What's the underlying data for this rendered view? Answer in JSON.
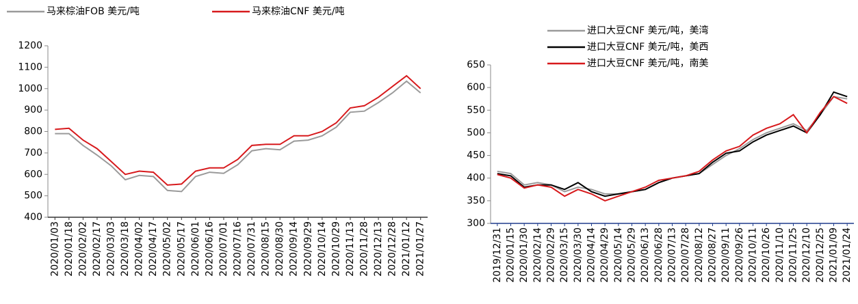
{
  "chart_data": [
    {
      "type": "line",
      "categories": [
        "2020/01/03",
        "2020/01/18",
        "2020/02/02",
        "2020/02/17",
        "2020/03/03",
        "2020/03/18",
        "2020/04/02",
        "2020/04/17",
        "2020/05/02",
        "2020/05/17",
        "2020/06/01",
        "2020/06/16",
        "2020/07/01",
        "2020/07/16",
        "2020/07/31",
        "2020/08/15",
        "2020/08/30",
        "2020/09/14",
        "2020/09/29",
        "2020/10/14",
        "2020/10/29",
        "2020/11/13",
        "2020/11/28",
        "2020/12/13",
        "2020/12/28",
        "2021/01/12",
        "2021/01/27"
      ],
      "series": [
        {
          "name": "马来棕油FOB  美元/吨",
          "color": "#9a9a9a",
          "values": [
            790,
            790,
            735,
            690,
            640,
            575,
            595,
            590,
            525,
            520,
            590,
            610,
            605,
            645,
            710,
            720,
            715,
            755,
            760,
            780,
            820,
            890,
            895,
            935,
            980,
            1035,
            980
          ]
        },
        {
          "name": "马来棕油CNF  美元/吨",
          "color": "#d7191c",
          "values": [
            810,
            815,
            760,
            720,
            660,
            600,
            615,
            610,
            550,
            555,
            615,
            630,
            630,
            670,
            735,
            740,
            740,
            780,
            780,
            800,
            840,
            910,
            920,
            960,
            1010,
            1060,
            1000
          ]
        }
      ],
      "ylim": [
        400,
        1200
      ],
      "yticks": [
        400,
        500,
        600,
        700,
        800,
        900,
        1000,
        1100,
        1200
      ],
      "legend": "top"
    },
    {
      "type": "line",
      "categories": [
        "2019/12/31",
        "2020/01/15",
        "2020/01/30",
        "2020/02/14",
        "2020/02/29",
        "2020/03/15",
        "2020/03/30",
        "2020/04/14",
        "2020/04/29",
        "2020/05/14",
        "2020/05/29",
        "2020/06/13",
        "2020/06/28",
        "2020/07/13",
        "2020/07/28",
        "2020/08/12",
        "2020/08/27",
        "2020/09/11",
        "2020/09/26",
        "2020/10/11",
        "2020/10/26",
        "2020/11/10",
        "2020/11/25",
        "2020/12/10",
        "2020/12/25",
        "2021/01/09",
        "2021/01/24"
      ],
      "series": [
        {
          "name": "进口大豆CNF  美元/吨，美湾",
          "color": "#9a9a9a",
          "values": [
            415,
            410,
            385,
            390,
            385,
            370,
            380,
            375,
            365,
            365,
            370,
            375,
            390,
            400,
            405,
            410,
            430,
            450,
            465,
            485,
            500,
            510,
            520,
            505,
            540,
            580,
            575
          ]
        },
        {
          "name": "进口大豆CNF  美元/吨，美西",
          "color": "#000000",
          "values": [
            410,
            405,
            380,
            385,
            385,
            375,
            390,
            370,
            360,
            365,
            370,
            375,
            390,
            400,
            405,
            410,
            435,
            455,
            460,
            480,
            495,
            505,
            515,
            500,
            540,
            590,
            580
          ]
        },
        {
          "name": "进口大豆CNF  美元/吨，南美",
          "color": "#d7191c",
          "values": [
            408,
            400,
            378,
            385,
            380,
            360,
            375,
            365,
            350,
            360,
            370,
            380,
            395,
            400,
            405,
            415,
            440,
            460,
            470,
            495,
            510,
            520,
            540,
            500,
            545,
            580,
            565
          ]
        }
      ],
      "ylim": [
        300,
        650
      ],
      "yticks": [
        300,
        350,
        400,
        450,
        500,
        550,
        600,
        650
      ],
      "legend": "top"
    }
  ]
}
